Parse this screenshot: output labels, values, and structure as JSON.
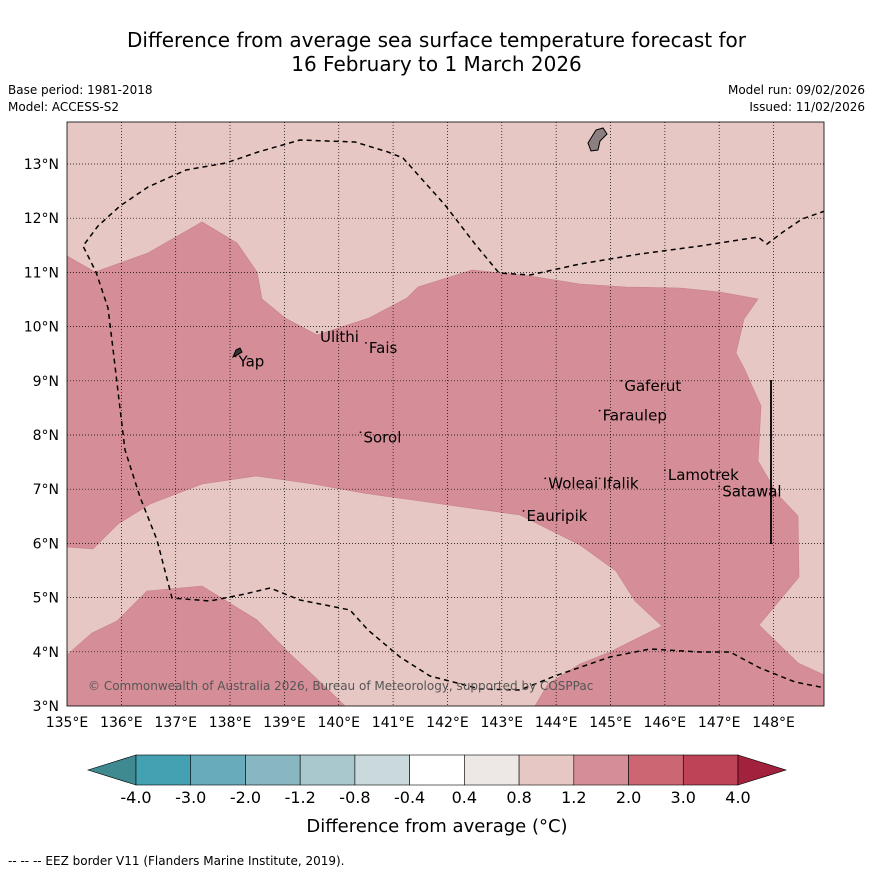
{
  "title": {
    "line1": "Difference from average sea surface temperature forecast for",
    "line2": "16 February to 1 March 2026"
  },
  "meta": {
    "base_period": "Base period: 1981-2018",
    "model": "Model: ACCESS-S2",
    "model_run": "Model run: 09/02/2026",
    "issued": "Issued: 11/02/2026"
  },
  "map": {
    "lon_range": [
      135,
      149
    ],
    "lat_range": [
      3,
      13.8
    ],
    "lon_ticks": [
      "135°E",
      "136°E",
      "137°E",
      "138°E",
      "139°E",
      "140°E",
      "141°E",
      "142°E",
      "143°E",
      "144°E",
      "145°E",
      "146°E",
      "147°E",
      "148°E"
    ],
    "lat_ticks": [
      "3°N",
      "4°N",
      "5°N",
      "6°N",
      "7°N",
      "8°N",
      "9°N",
      "10°N",
      "11°N",
      "12°N",
      "13°N"
    ],
    "copyright": "© Commonwealth of Australia 2026, Bureau of Meteorology, supported by COSPPac",
    "places": [
      {
        "name": "Yap",
        "lon": 138.1,
        "lat": 9.45
      },
      {
        "name": "Ulithi",
        "lon": 139.6,
        "lat": 9.9
      },
      {
        "name": "Fais",
        "lon": 140.5,
        "lat": 9.7
      },
      {
        "name": "Gaferut",
        "lon": 145.2,
        "lat": 9.0
      },
      {
        "name": "Faraulep",
        "lon": 144.8,
        "lat": 8.45
      },
      {
        "name": "Sorol",
        "lon": 140.4,
        "lat": 8.05
      },
      {
        "name": "Woleai",
        "lon": 143.8,
        "lat": 7.2
      },
      {
        "name": "Ifalik",
        "lon": 144.8,
        "lat": 7.2
      },
      {
        "name": "Lamotrek",
        "lon": 146.0,
        "lat": 7.35
      },
      {
        "name": "Satawal",
        "lon": 147.0,
        "lat": 7.05
      },
      {
        "name": "Eauripik",
        "lon": 143.4,
        "lat": 6.6
      }
    ],
    "colors": {
      "band_0_4_to_0_8": "#ede7e6",
      "band_0_8_to_1_2": "#e6c7c3",
      "band_1_2_to_2_0": "#d58e97"
    }
  },
  "legend": {
    "labels": [
      "-4.0",
      "-3.0",
      "-2.0",
      "-1.2",
      "-0.8",
      "-0.4",
      "0.4",
      "0.8",
      "1.2",
      "2.0",
      "3.0",
      "4.0"
    ],
    "colors": [
      "#44a1b2",
      "#68acbb",
      "#88b7c2",
      "#a9c8ce",
      "#c9d9dc",
      "#ffffff",
      "#ede7e6",
      "#e6c7c3",
      "#d58e97",
      "#cb6672",
      "#be4356"
    ],
    "under_color": "#3f8991",
    "over_color": "#a2213c",
    "title": "Difference from average (°C)"
  },
  "footnote": "--  --  -- EEZ border V11 (Flanders Marine Institute, 2019)."
}
